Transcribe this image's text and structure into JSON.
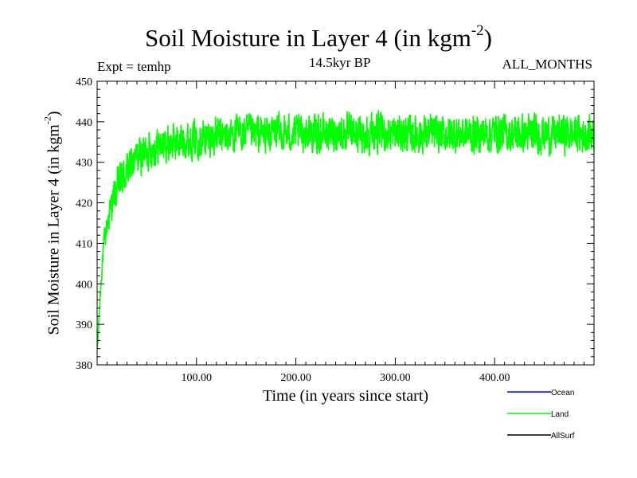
{
  "title_main": "Soil Moisture in Layer 4 (in kgm",
  "title_sup": "-2",
  "title_close": ")",
  "expt": "Expt = temhp",
  "period": "14.5kyr BP",
  "months": "ALL_MONTHS",
  "colors": {
    "ocean": "#0000ff",
    "land": "#00ff00",
    "allsurf": "#000000"
  },
  "chart_data": {
    "type": "line",
    "title": "Soil Moisture in Layer 4 (in kgm-2)",
    "xlabel": "Time (in years since start)",
    "ylabel": "Soil Moisture in Layer 4 (in kgm-2)",
    "xlim": [
      0,
      500
    ],
    "ylim": [
      380,
      450
    ],
    "x_ticks": [
      100,
      200,
      300,
      400
    ],
    "x_tick_labels": [
      "100.00",
      "200.00",
      "300.00",
      "400.00"
    ],
    "y_ticks": [
      380,
      390,
      400,
      410,
      420,
      430,
      440,
      450
    ],
    "y_tick_labels": [
      "380",
      "390",
      "400",
      "410",
      "420",
      "430",
      "440",
      "450"
    ],
    "legend": [
      "Ocean",
      "Land",
      "AllSurf"
    ],
    "series": [
      {
        "name": "Land",
        "x": [
          0,
          1,
          2,
          3,
          4,
          5,
          7,
          9,
          11,
          13,
          15,
          18,
          21,
          25,
          30,
          35,
          40,
          45,
          50,
          60,
          70,
          80,
          90,
          100,
          110,
          120,
          130,
          140,
          150,
          160,
          170,
          180,
          190,
          200,
          210,
          220,
          230,
          240,
          250,
          260,
          270,
          280,
          290,
          300,
          310,
          320,
          330,
          340,
          350,
          360,
          370,
          380,
          390,
          400,
          410,
          420,
          430,
          440,
          450,
          460,
          470,
          480,
          490,
          500
        ],
        "values": [
          383,
          387,
          392,
          397,
          401,
          405,
          410,
          413,
          416,
          418,
          420,
          422,
          424,
          426,
          428,
          429.5,
          431,
          432,
          433,
          434,
          434.5,
          435,
          435.5,
          436,
          436,
          436.5,
          436.5,
          437,
          437,
          437,
          437,
          437.5,
          437,
          437,
          437.5,
          437,
          437,
          437.5,
          437,
          437,
          437,
          437.5,
          437,
          437,
          437,
          437,
          437,
          437,
          437,
          437,
          437,
          437,
          437,
          437.5,
          437,
          437,
          437,
          437,
          437,
          437,
          437,
          437,
          437,
          437
        ],
        "noise_amplitude": 4.5
      }
    ]
  }
}
